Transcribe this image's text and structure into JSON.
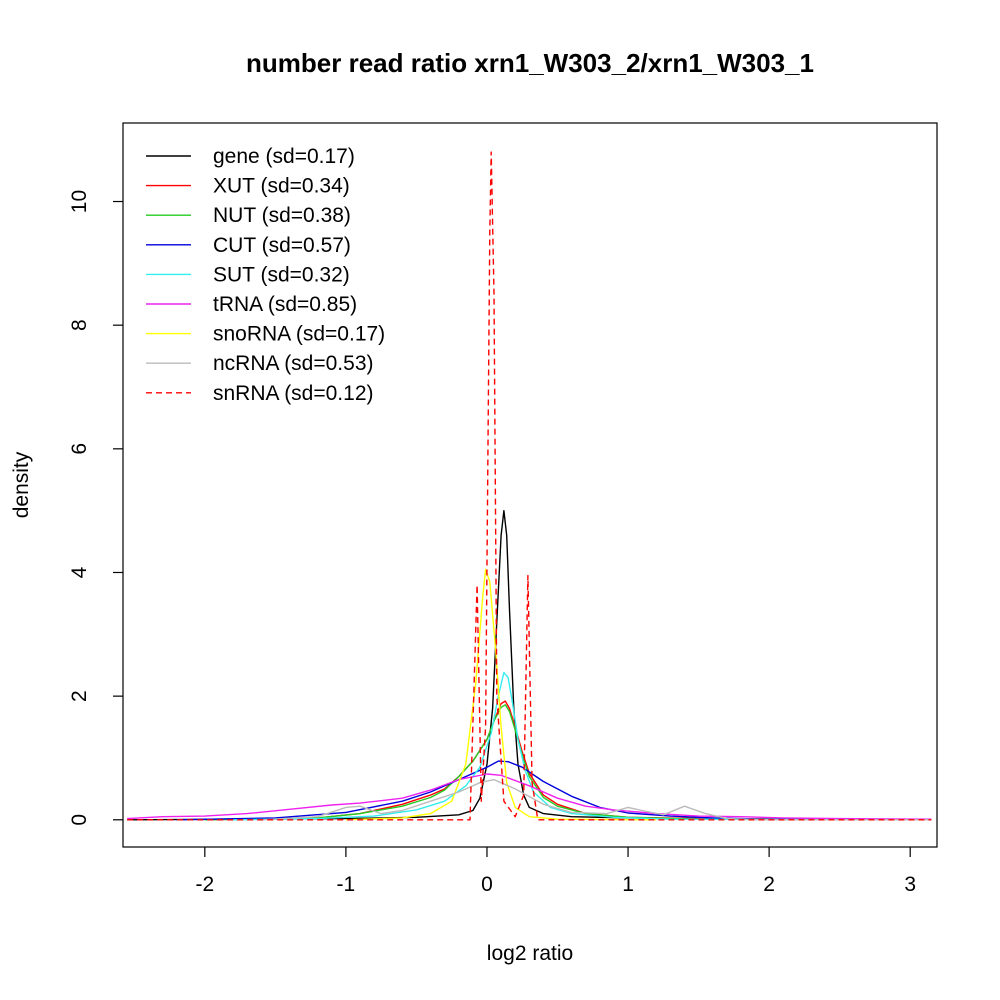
{
  "chart_data": {
    "type": "line",
    "title": "number read ratio xrn1_W303_2/xrn1_W303_1",
    "xlabel": "log2 ratio",
    "ylabel": "density",
    "xlim": [
      -2.58,
      3.19
    ],
    "ylim": [
      -0.44,
      11.27
    ],
    "xticks": [
      -2,
      -1,
      0,
      1,
      2,
      3
    ],
    "yticks": [
      0,
      2,
      4,
      6,
      8,
      10
    ],
    "grid": false,
    "legend_position": "top-left",
    "series": [
      {
        "name": "gene (sd=0.17)",
        "color": "#000000",
        "dash": "solid",
        "points": [
          [
            -2.55,
            0
          ],
          [
            -1.0,
            0.02
          ],
          [
            -0.5,
            0.04
          ],
          [
            -0.2,
            0.08
          ],
          [
            -0.1,
            0.15
          ],
          [
            -0.05,
            0.35
          ],
          [
            0.0,
            0.9
          ],
          [
            0.04,
            1.8
          ],
          [
            0.07,
            3.2
          ],
          [
            0.1,
            4.6
          ],
          [
            0.12,
            5.0
          ],
          [
            0.14,
            4.6
          ],
          [
            0.16,
            3.4
          ],
          [
            0.19,
            1.8
          ],
          [
            0.22,
            0.9
          ],
          [
            0.26,
            0.4
          ],
          [
            0.3,
            0.2
          ],
          [
            0.4,
            0.1
          ],
          [
            0.6,
            0.05
          ],
          [
            1.0,
            0.03
          ],
          [
            1.6,
            0.02
          ],
          [
            2.2,
            0.01
          ],
          [
            3.15,
            0
          ]
        ]
      },
      {
        "name": "XUT (sd=0.34)",
        "color": "#ff0000",
        "dash": "solid",
        "points": [
          [
            -2.0,
            0
          ],
          [
            -1.2,
            0.03
          ],
          [
            -0.9,
            0.1
          ],
          [
            -0.6,
            0.25
          ],
          [
            -0.4,
            0.4
          ],
          [
            -0.3,
            0.5
          ],
          [
            -0.2,
            0.7
          ],
          [
            -0.1,
            0.95
          ],
          [
            0.0,
            1.3
          ],
          [
            0.05,
            1.6
          ],
          [
            0.1,
            1.88
          ],
          [
            0.13,
            1.92
          ],
          [
            0.16,
            1.8
          ],
          [
            0.2,
            1.5
          ],
          [
            0.25,
            1.1
          ],
          [
            0.3,
            0.75
          ],
          [
            0.4,
            0.4
          ],
          [
            0.5,
            0.25
          ],
          [
            0.7,
            0.1
          ],
          [
            1.0,
            0.04
          ],
          [
            1.5,
            0.02
          ],
          [
            3.15,
            0
          ]
        ]
      },
      {
        "name": "NUT (sd=0.38)",
        "color": "#22cc22",
        "dash": "solid",
        "points": [
          [
            -2.0,
            0
          ],
          [
            -1.2,
            0.03
          ],
          [
            -0.9,
            0.1
          ],
          [
            -0.6,
            0.22
          ],
          [
            -0.4,
            0.36
          ],
          [
            -0.3,
            0.48
          ],
          [
            -0.2,
            0.7
          ],
          [
            -0.1,
            0.95
          ],
          [
            0.0,
            1.3
          ],
          [
            0.05,
            1.6
          ],
          [
            0.1,
            1.82
          ],
          [
            0.13,
            1.86
          ],
          [
            0.16,
            1.75
          ],
          [
            0.2,
            1.45
          ],
          [
            0.25,
            1.05
          ],
          [
            0.3,
            0.7
          ],
          [
            0.4,
            0.36
          ],
          [
            0.5,
            0.22
          ],
          [
            0.7,
            0.1
          ],
          [
            1.0,
            0.04
          ],
          [
            1.5,
            0.01
          ],
          [
            3.15,
            0
          ]
        ]
      },
      {
        "name": "CUT (sd=0.57)",
        "color": "#0000dd",
        "dash": "solid",
        "points": [
          [
            -2.2,
            0
          ],
          [
            -1.5,
            0.03
          ],
          [
            -1.0,
            0.12
          ],
          [
            -0.6,
            0.3
          ],
          [
            -0.4,
            0.45
          ],
          [
            -0.2,
            0.65
          ],
          [
            0.0,
            0.85
          ],
          [
            0.08,
            0.95
          ],
          [
            0.15,
            0.94
          ],
          [
            0.25,
            0.85
          ],
          [
            0.4,
            0.62
          ],
          [
            0.6,
            0.38
          ],
          [
            0.8,
            0.2
          ],
          [
            1.0,
            0.11
          ],
          [
            1.3,
            0.06
          ],
          [
            1.6,
            0.03
          ],
          [
            2.0,
            0.01
          ],
          [
            3.15,
            0
          ]
        ]
      },
      {
        "name": "SUT (sd=0.32)",
        "color": "#33eeee",
        "dash": "solid",
        "points": [
          [
            -1.8,
            0
          ],
          [
            -1.2,
            0.02
          ],
          [
            -0.8,
            0.06
          ],
          [
            -0.5,
            0.16
          ],
          [
            -0.3,
            0.3
          ],
          [
            -0.15,
            0.55
          ],
          [
            -0.05,
            0.85
          ],
          [
            0.03,
            1.4
          ],
          [
            0.08,
            2.0
          ],
          [
            0.12,
            2.38
          ],
          [
            0.15,
            2.3
          ],
          [
            0.18,
            1.9
          ],
          [
            0.22,
            1.3
          ],
          [
            0.27,
            0.8
          ],
          [
            0.33,
            0.45
          ],
          [
            0.45,
            0.2
          ],
          [
            0.6,
            0.1
          ],
          [
            0.9,
            0.04
          ],
          [
            1.3,
            0.01
          ],
          [
            3.15,
            0
          ]
        ]
      },
      {
        "name": "tRNA (sd=0.85)",
        "color": "#ee22ee",
        "dash": "solid",
        "points": [
          [
            -2.55,
            0.02
          ],
          [
            -2.3,
            0.05
          ],
          [
            -2.0,
            0.06
          ],
          [
            -1.7,
            0.1
          ],
          [
            -1.4,
            0.17
          ],
          [
            -1.1,
            0.24
          ],
          [
            -0.9,
            0.27
          ],
          [
            -0.6,
            0.35
          ],
          [
            -0.4,
            0.48
          ],
          [
            -0.2,
            0.65
          ],
          [
            0.0,
            0.74
          ],
          [
            0.1,
            0.72
          ],
          [
            0.3,
            0.55
          ],
          [
            0.5,
            0.35
          ],
          [
            0.7,
            0.22
          ],
          [
            0.9,
            0.16
          ],
          [
            1.2,
            0.1
          ],
          [
            1.5,
            0.06
          ],
          [
            1.8,
            0.05
          ],
          [
            2.1,
            0.03
          ],
          [
            2.5,
            0.02
          ],
          [
            3.15,
            0.01
          ]
        ]
      },
      {
        "name": "snoRNA (sd=0.17)",
        "color": "#ffff00",
        "dash": "solid",
        "points": [
          [
            -1.0,
            0
          ],
          [
            -0.6,
            0.03
          ],
          [
            -0.4,
            0.1
          ],
          [
            -0.25,
            0.3
          ],
          [
            -0.15,
            0.9
          ],
          [
            -0.08,
            2.2
          ],
          [
            -0.03,
            3.6
          ],
          [
            -0.01,
            4.05
          ],
          [
            0.02,
            3.85
          ],
          [
            0.06,
            2.8
          ],
          [
            0.1,
            1.5
          ],
          [
            0.14,
            0.6
          ],
          [
            0.2,
            0.2
          ],
          [
            0.3,
            0.05
          ],
          [
            0.5,
            0.01
          ],
          [
            1.2,
            0
          ]
        ]
      },
      {
        "name": "ncRNA (sd=0.53)",
        "color": "#bbbbbb",
        "dash": "solid",
        "points": [
          [
            -1.6,
            0
          ],
          [
            -1.2,
            0.05
          ],
          [
            -1.0,
            0.2
          ],
          [
            -0.9,
            0.22
          ],
          [
            -0.75,
            0.1
          ],
          [
            -0.6,
            0.15
          ],
          [
            -0.4,
            0.3
          ],
          [
            -0.2,
            0.45
          ],
          [
            -0.05,
            0.6
          ],
          [
            0.05,
            0.65
          ],
          [
            0.2,
            0.5
          ],
          [
            0.4,
            0.25
          ],
          [
            0.6,
            0.12
          ],
          [
            0.85,
            0.1
          ],
          [
            1.0,
            0.2
          ],
          [
            1.1,
            0.15
          ],
          [
            1.25,
            0.08
          ],
          [
            1.4,
            0.22
          ],
          [
            1.55,
            0.1
          ],
          [
            1.7,
            0.02
          ],
          [
            2.0,
            0
          ],
          [
            3.15,
            0
          ]
        ]
      },
      {
        "name": "snRNA (sd=0.12)",
        "color": "#ff0000",
        "dash": "dashed",
        "points": [
          [
            -2.55,
            0
          ],
          [
            -0.12,
            0
          ],
          [
            -0.07,
            3.8
          ],
          [
            -0.04,
            0.3
          ],
          [
            -0.01,
            1.5
          ],
          [
            0.02,
            9.5
          ],
          [
            0.03,
            10.8
          ],
          [
            0.05,
            8.5
          ],
          [
            0.07,
            2.0
          ],
          [
            0.12,
            0.3
          ],
          [
            0.2,
            0.05
          ],
          [
            0.26,
            0.4
          ],
          [
            0.29,
            3.95
          ],
          [
            0.32,
            0.6
          ],
          [
            0.36,
            0
          ],
          [
            3.15,
            0
          ]
        ]
      }
    ]
  }
}
